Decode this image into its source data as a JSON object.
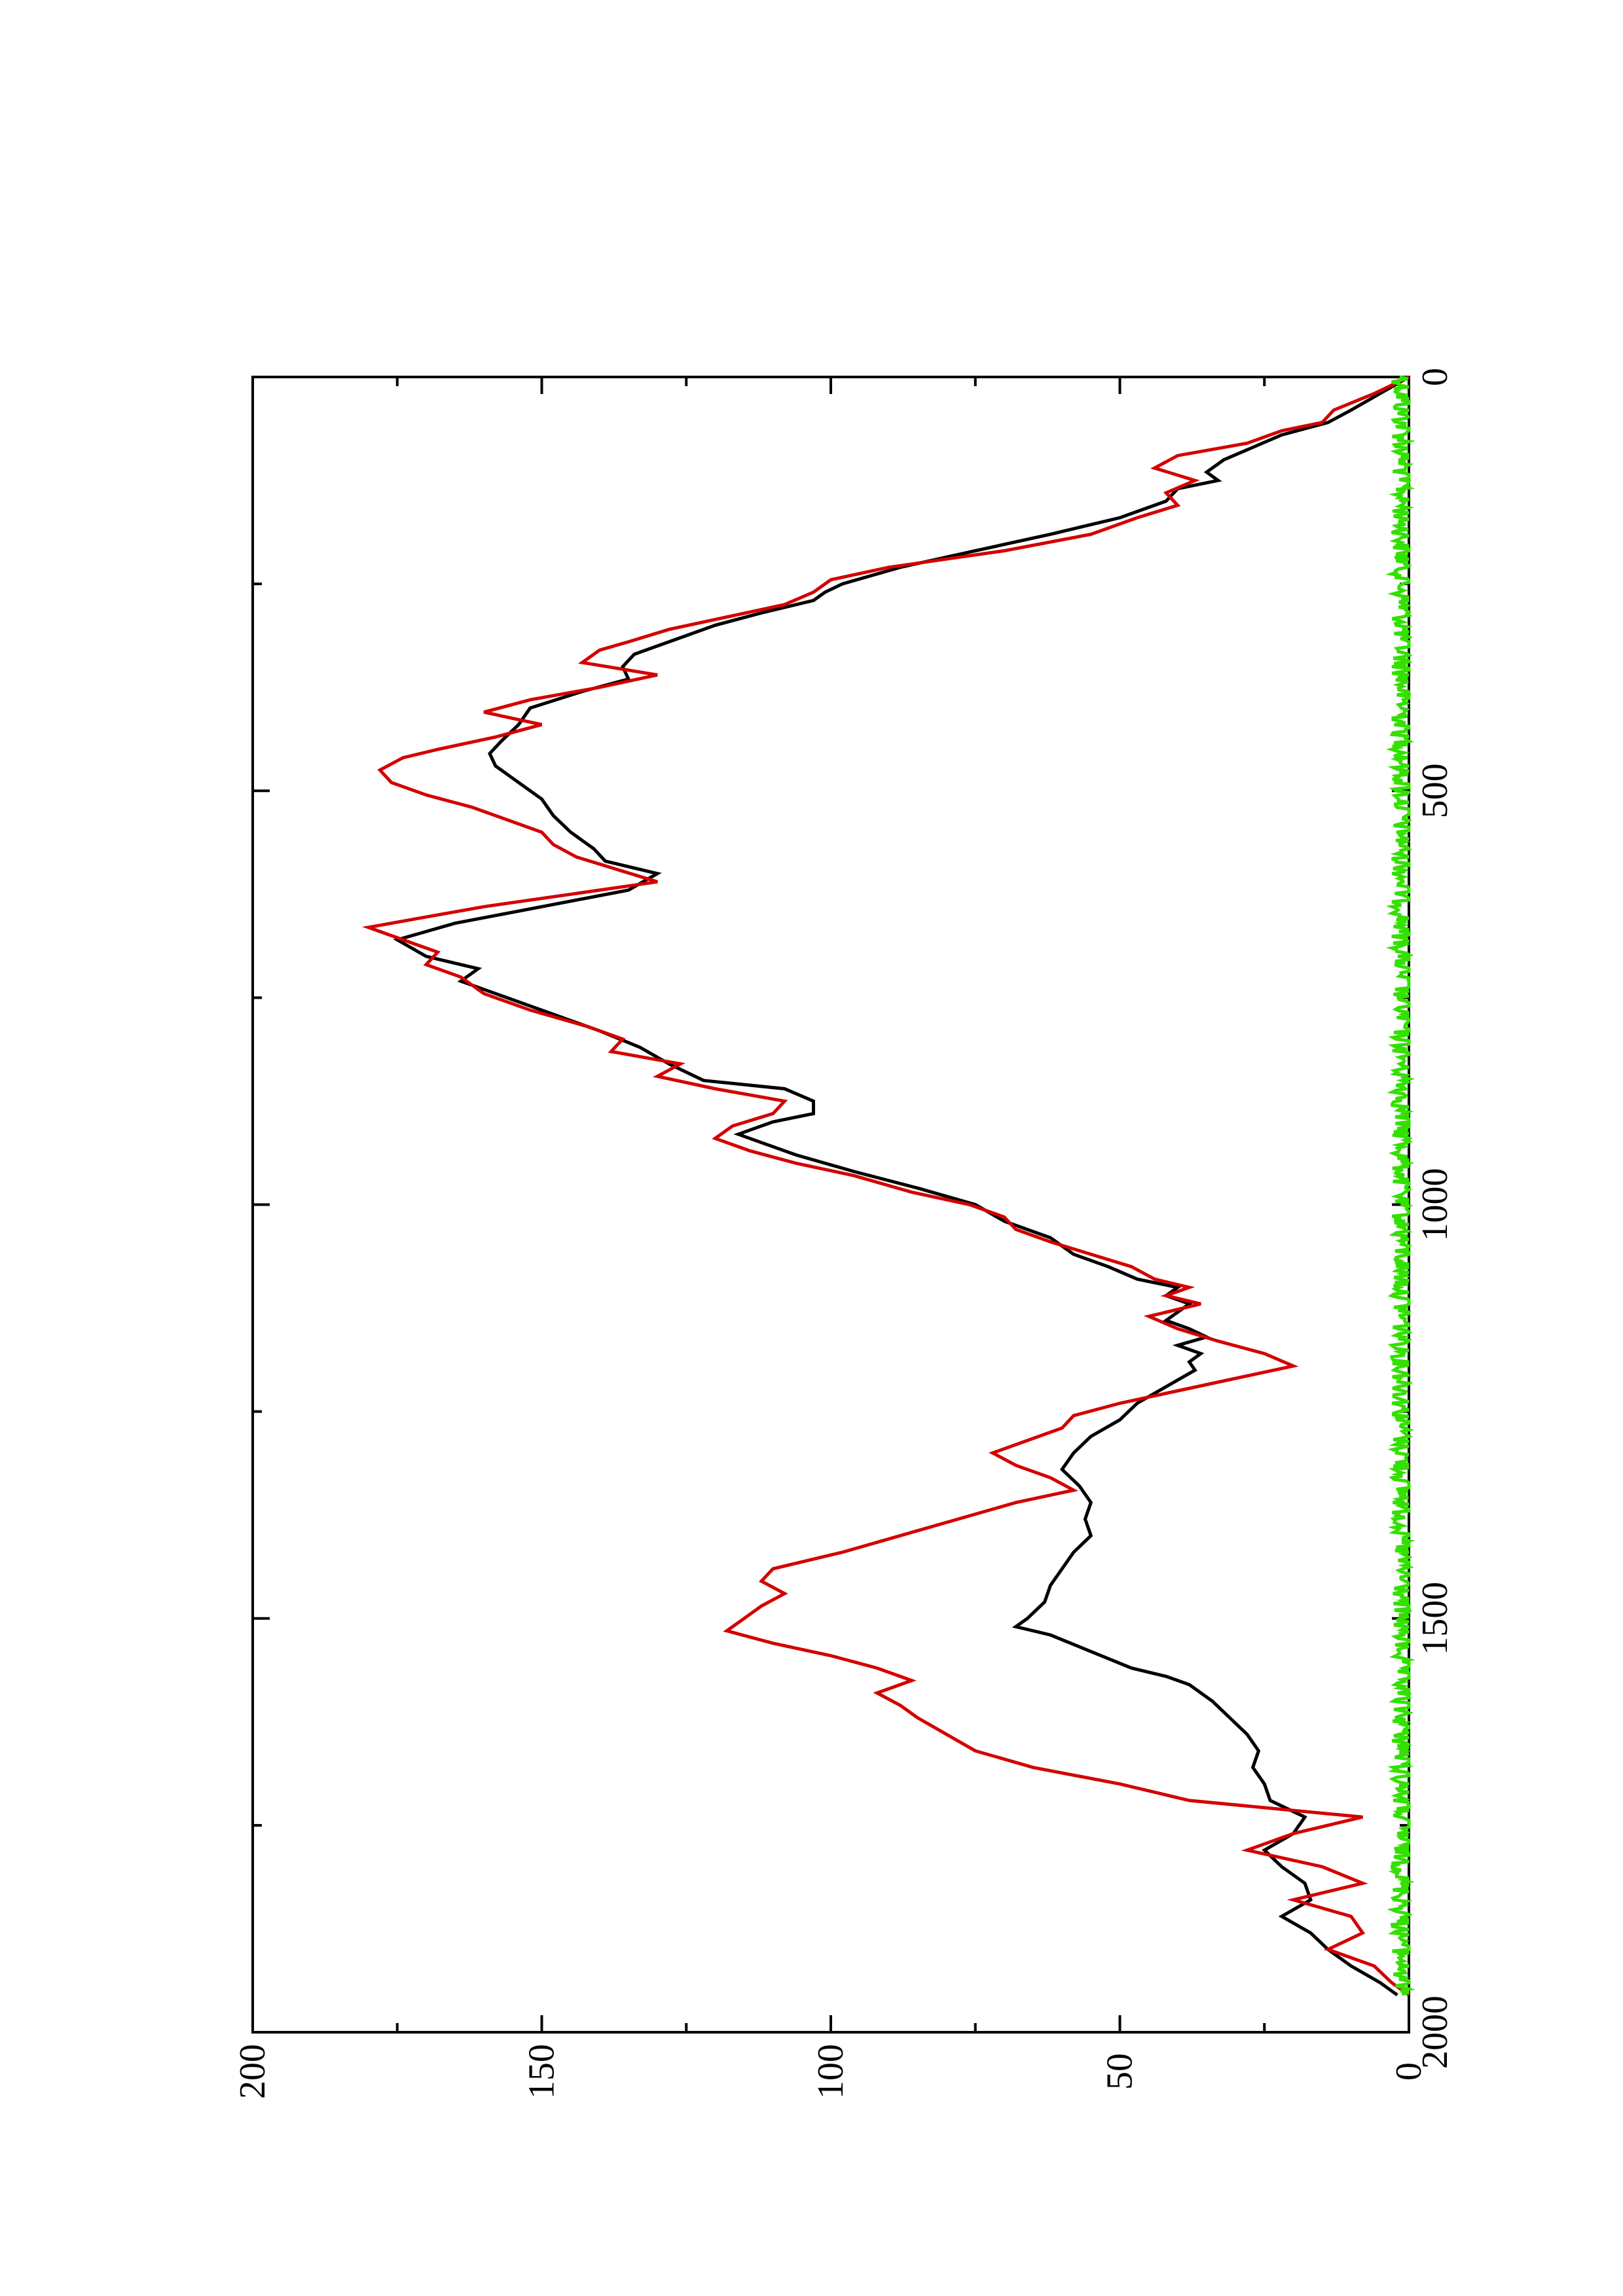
{
  "chart_data": {
    "type": "line",
    "title": "",
    "xlabel": "",
    "ylabel": "",
    "orientation": "rotated 90 degrees counter-clockwise",
    "xlim": [
      0,
      2000
    ],
    "ylim": [
      0,
      200
    ],
    "x_ticks": [
      "0",
      "500",
      "1000",
      "1500",
      "2000"
    ],
    "y_ticks": [
      "0",
      "50",
      "100",
      "150",
      "200"
    ],
    "grid": false,
    "legend": "none",
    "series": [
      {
        "color": "#000000",
        "points": [
          [
            0,
            0
          ],
          [
            20,
            5
          ],
          [
            40,
            10
          ],
          [
            55,
            14
          ],
          [
            70,
            22
          ],
          [
            85,
            27
          ],
          [
            100,
            32
          ],
          [
            115,
            35
          ],
          [
            125,
            33
          ],
          [
            135,
            40
          ],
          [
            150,
            42
          ],
          [
            170,
            50
          ],
          [
            190,
            62
          ],
          [
            210,
            75
          ],
          [
            230,
            88
          ],
          [
            250,
            98
          ],
          [
            260,
            101
          ],
          [
            270,
            103
          ],
          [
            285,
            112
          ],
          [
            300,
            120
          ],
          [
            320,
            128
          ],
          [
            335,
            134
          ],
          [
            350,
            136
          ],
          [
            365,
            135
          ],
          [
            380,
            143
          ],
          [
            400,
            152
          ],
          [
            420,
            154
          ],
          [
            440,
            157
          ],
          [
            455,
            159
          ],
          [
            470,
            158
          ],
          [
            490,
            154
          ],
          [
            510,
            150
          ],
          [
            530,
            148
          ],
          [
            550,
            145
          ],
          [
            570,
            141
          ],
          [
            585,
            139
          ],
          [
            600,
            130
          ],
          [
            620,
            135
          ],
          [
            640,
            150
          ],
          [
            660,
            165
          ],
          [
            680,
            175
          ],
          [
            700,
            170
          ],
          [
            715,
            161
          ],
          [
            730,
            164
          ],
          [
            750,
            156
          ],
          [
            770,
            148
          ],
          [
            790,
            140
          ],
          [
            810,
            133
          ],
          [
            830,
            128
          ],
          [
            850,
            122
          ],
          [
            860,
            108
          ],
          [
            875,
            103
          ],
          [
            890,
            103
          ],
          [
            900,
            110
          ],
          [
            915,
            116
          ],
          [
            925,
            112
          ],
          [
            940,
            106
          ],
          [
            960,
            96
          ],
          [
            980,
            85
          ],
          [
            1000,
            75
          ],
          [
            1020,
            70
          ],
          [
            1040,
            62
          ],
          [
            1060,
            58
          ],
          [
            1075,
            52
          ],
          [
            1090,
            47
          ],
          [
            1100,
            40
          ],
          [
            1110,
            42
          ],
          [
            1120,
            38
          ],
          [
            1130,
            40
          ],
          [
            1140,
            42
          ],
          [
            1150,
            38
          ],
          [
            1160,
            35
          ],
          [
            1170,
            40
          ],
          [
            1180,
            36
          ],
          [
            1190,
            38
          ],
          [
            1200,
            37
          ],
          [
            1220,
            42
          ],
          [
            1240,
            47
          ],
          [
            1260,
            50
          ],
          [
            1280,
            55
          ],
          [
            1300,
            58
          ],
          [
            1320,
            60
          ],
          [
            1340,
            57
          ],
          [
            1360,
            55
          ],
          [
            1380,
            56
          ],
          [
            1400,
            55
          ],
          [
            1420,
            58
          ],
          [
            1440,
            60
          ],
          [
            1460,
            62
          ],
          [
            1480,
            63
          ],
          [
            1500,
            66
          ],
          [
            1510,
            68
          ],
          [
            1520,
            62
          ],
          [
            1540,
            55
          ],
          [
            1560,
            48
          ],
          [
            1570,
            42
          ],
          [
            1580,
            38
          ],
          [
            1600,
            34
          ],
          [
            1620,
            31
          ],
          [
            1640,
            28
          ],
          [
            1660,
            26
          ],
          [
            1680,
            27
          ],
          [
            1700,
            25
          ],
          [
            1720,
            24
          ],
          [
            1740,
            18
          ],
          [
            1760,
            20
          ],
          [
            1780,
            25
          ],
          [
            1800,
            22
          ],
          [
            1820,
            18
          ],
          [
            1840,
            17
          ],
          [
            1860,
            22
          ],
          [
            1880,
            17
          ],
          [
            1900,
            14
          ],
          [
            1920,
            10
          ],
          [
            1940,
            5
          ],
          [
            1955,
            2
          ]
        ]
      },
      {
        "color": "#d40000",
        "points": [
          [
            0,
            0
          ],
          [
            20,
            6
          ],
          [
            40,
            13
          ],
          [
            55,
            15
          ],
          [
            65,
            22
          ],
          [
            80,
            28
          ],
          [
            95,
            40
          ],
          [
            110,
            44
          ],
          [
            125,
            37
          ],
          [
            140,
            42
          ],
          [
            155,
            40
          ],
          [
            170,
            47
          ],
          [
            190,
            55
          ],
          [
            210,
            70
          ],
          [
            230,
            90
          ],
          [
            245,
            100
          ],
          [
            260,
            103
          ],
          [
            275,
            108
          ],
          [
            290,
            118
          ],
          [
            305,
            128
          ],
          [
            320,
            135
          ],
          [
            330,
            140
          ],
          [
            345,
            143
          ],
          [
            360,
            130
          ],
          [
            375,
            140
          ],
          [
            390,
            152
          ],
          [
            405,
            160
          ],
          [
            420,
            150
          ],
          [
            435,
            158
          ],
          [
            450,
            168
          ],
          [
            460,
            174
          ],
          [
            475,
            178
          ],
          [
            490,
            176
          ],
          [
            505,
            170
          ],
          [
            520,
            162
          ],
          [
            535,
            156
          ],
          [
            550,
            150
          ],
          [
            565,
            148
          ],
          [
            580,
            144
          ],
          [
            595,
            137
          ],
          [
            610,
            130
          ],
          [
            625,
            145
          ],
          [
            640,
            160
          ],
          [
            655,
            172
          ],
          [
            665,
            180
          ],
          [
            680,
            174
          ],
          [
            695,
            168
          ],
          [
            710,
            170
          ],
          [
            725,
            164
          ],
          [
            745,
            160
          ],
          [
            765,
            152
          ],
          [
            785,
            142
          ],
          [
            800,
            136
          ],
          [
            815,
            138
          ],
          [
            830,
            126
          ],
          [
            845,
            130
          ],
          [
            860,
            120
          ],
          [
            875,
            108
          ],
          [
            890,
            110
          ],
          [
            905,
            117
          ],
          [
            920,
            120
          ],
          [
            935,
            114
          ],
          [
            950,
            106
          ],
          [
            965,
            96
          ],
          [
            985,
            86
          ],
          [
            1000,
            76
          ],
          [
            1015,
            70
          ],
          [
            1030,
            68
          ],
          [
            1045,
            62
          ],
          [
            1060,
            55
          ],
          [
            1075,
            48
          ],
          [
            1090,
            44
          ],
          [
            1100,
            38
          ],
          [
            1110,
            42
          ],
          [
            1120,
            36
          ],
          [
            1135,
            45
          ],
          [
            1150,
            40
          ],
          [
            1165,
            33
          ],
          [
            1180,
            25
          ],
          [
            1195,
            20
          ],
          [
            1210,
            30
          ],
          [
            1225,
            40
          ],
          [
            1240,
            50
          ],
          [
            1255,
            58
          ],
          [
            1270,
            60
          ],
          [
            1285,
            66
          ],
          [
            1300,
            72
          ],
          [
            1315,
            68
          ],
          [
            1330,
            62
          ],
          [
            1345,
            58
          ],
          [
            1360,
            68
          ],
          [
            1380,
            78
          ],
          [
            1400,
            88
          ],
          [
            1420,
            98
          ],
          [
            1440,
            110
          ],
          [
            1455,
            112
          ],
          [
            1470,
            108
          ],
          [
            1485,
            112
          ],
          [
            1500,
            115
          ],
          [
            1515,
            118
          ],
          [
            1530,
            110
          ],
          [
            1545,
            100
          ],
          [
            1560,
            92
          ],
          [
            1575,
            86
          ],
          [
            1590,
            92
          ],
          [
            1605,
            88
          ],
          [
            1620,
            85
          ],
          [
            1640,
            80
          ],
          [
            1660,
            75
          ],
          [
            1680,
            65
          ],
          [
            1700,
            50
          ],
          [
            1720,
            38
          ],
          [
            1740,
            8
          ],
          [
            1760,
            20
          ],
          [
            1780,
            28
          ],
          [
            1800,
            15
          ],
          [
            1820,
            8
          ],
          [
            1840,
            20
          ],
          [
            1860,
            10
          ],
          [
            1880,
            8
          ],
          [
            1900,
            14
          ],
          [
            1920,
            6
          ],
          [
            1940,
            3
          ],
          [
            1955,
            0
          ]
        ]
      },
      {
        "color": "#33e000",
        "noise_amplitude": 2,
        "points": [
          [
            0,
            1
          ],
          [
            1955,
            1
          ]
        ]
      }
    ]
  }
}
